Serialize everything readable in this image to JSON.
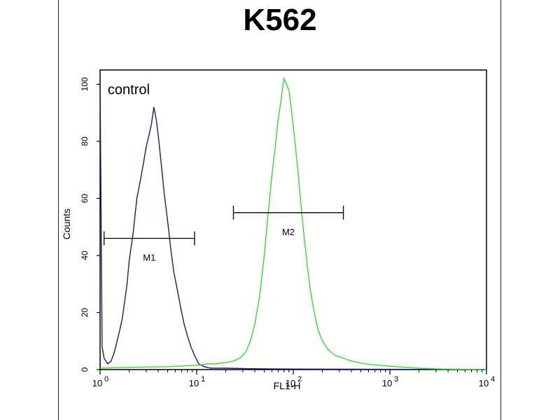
{
  "chart_data": {
    "type": "line",
    "title": "K562",
    "xlabel": "FL1-H",
    "ylabel": "Counts",
    "x_scale": "log",
    "xlim": [
      1,
      10000
    ],
    "ylim": [
      0,
      105
    ],
    "x_ticks": [
      {
        "value": 1,
        "label": "10",
        "exp": "0"
      },
      {
        "value": 10,
        "label": "10",
        "exp": "1"
      },
      {
        "value": 100,
        "label": "10",
        "exp": "2"
      },
      {
        "value": 1000,
        "label": "10",
        "exp": "3"
      },
      {
        "value": 10000,
        "label": "10",
        "exp": "4"
      }
    ],
    "y_ticks": [
      0,
      20,
      40,
      60,
      80,
      100
    ],
    "grid": false,
    "annotations": [
      {
        "text": "control",
        "x": 1.2,
        "y": 98
      }
    ],
    "markers": [
      {
        "label": "M1",
        "x_start": 1.1,
        "x_end": 9.5,
        "y": 46
      },
      {
        "label": "M2",
        "x_start": 24,
        "x_end": 330,
        "y": 55
      }
    ],
    "series": [
      {
        "color": "#1a1a7a",
        "x": [
          1,
          1.05,
          1.1,
          1.2,
          1.3,
          1.4,
          1.5,
          1.6,
          1.7,
          1.8,
          1.9,
          2.0,
          2.2,
          2.4,
          2.6,
          2.8,
          3.0,
          3.2,
          3.4,
          3.6,
          3.8,
          4.0,
          4.3,
          4.6,
          5.0,
          5.4,
          5.8,
          6.3,
          6.8,
          7.4,
          8.0,
          8.7,
          9.5,
          10.5,
          12,
          14,
          20,
          40,
          100,
          1000,
          10000
        ],
        "y": [
          100,
          8,
          4,
          2,
          3,
          6,
          10,
          14,
          18,
          24,
          30,
          38,
          48,
          60,
          66,
          72,
          78,
          82,
          86,
          92,
          88,
          82,
          72,
          62,
          52,
          42,
          34,
          28,
          22,
          16,
          12,
          8,
          5,
          2,
          1,
          0.5,
          0.5,
          0.3,
          0.2,
          0.1,
          0
        ]
      },
      {
        "color": "#33dd33",
        "x": [
          1,
          2,
          5,
          10,
          13,
          16,
          20,
          24,
          28,
          32,
          36,
          40,
          45,
          50,
          55,
          60,
          65,
          70,
          75,
          80,
          85,
          90,
          95,
          100,
          110,
          120,
          130,
          140,
          150,
          165,
          180,
          200,
          230,
          270,
          330,
          400,
          550,
          800,
          1200,
          2000,
          3500,
          10000
        ],
        "y": [
          0.5,
          0.8,
          1,
          1.5,
          2,
          2,
          2.5,
          3,
          4,
          6,
          10,
          16,
          26,
          40,
          55,
          68,
          78,
          88,
          95,
          102,
          100,
          98,
          92,
          85,
          72,
          58,
          46,
          36,
          28,
          20,
          14,
          10,
          7,
          5,
          4,
          3,
          2,
          1.5,
          1,
          0.5,
          0.2,
          0
        ]
      }
    ]
  }
}
